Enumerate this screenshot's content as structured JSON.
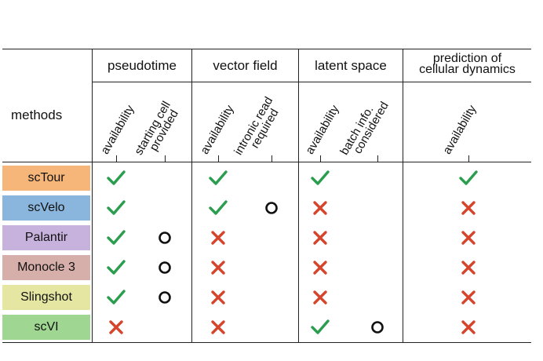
{
  "header": {
    "methods_label": "methods",
    "groups": [
      {
        "id": "pseudotime",
        "label": "pseudotime"
      },
      {
        "id": "vector_field",
        "label": "vector field"
      },
      {
        "id": "latent_space",
        "label": "latent space"
      },
      {
        "id": "prediction",
        "label_line1": "prediction of",
        "label_line2": "cellular dynamics"
      }
    ],
    "sub_columns": [
      {
        "group": "pseudotime",
        "lines": [
          "availability"
        ]
      },
      {
        "group": "pseudotime",
        "lines": [
          "starting cell",
          "provided"
        ]
      },
      {
        "group": "vector_field",
        "lines": [
          "availability"
        ]
      },
      {
        "group": "vector_field",
        "lines": [
          "intronic read",
          "required"
        ]
      },
      {
        "group": "latent_space",
        "lines": [
          "availability"
        ]
      },
      {
        "group": "latent_space",
        "lines": [
          "batch info.",
          "considered"
        ]
      },
      {
        "group": "prediction",
        "lines": [
          "availability"
        ]
      }
    ]
  },
  "colors": {
    "check": "#2a9d4e",
    "cross": "#d6442b",
    "circle": "#111111"
  },
  "legend_symbols": {
    "check": "check-icon",
    "cross": "cross-icon",
    "circle": "circle-icon"
  },
  "rows": [
    {
      "method": "scTour",
      "color": "#f6b679",
      "marks": [
        "check",
        "",
        "check",
        "",
        "check",
        "",
        "check"
      ]
    },
    {
      "method": "scVelo",
      "color": "#8ab6dd",
      "marks": [
        "check",
        "",
        "check",
        "circle",
        "cross",
        "",
        "cross"
      ]
    },
    {
      "method": "Palantir",
      "color": "#c7b2dd",
      "marks": [
        "check",
        "circle",
        "cross",
        "",
        "cross",
        "",
        "cross"
      ]
    },
    {
      "method": "Monocle 3",
      "color": "#d6aeaa",
      "marks": [
        "check",
        "circle",
        "cross",
        "",
        "cross",
        "",
        "cross"
      ]
    },
    {
      "method": "Slingshot",
      "color": "#e4e6a1",
      "marks": [
        "check",
        "circle",
        "cross",
        "",
        "cross",
        "",
        "cross"
      ]
    },
    {
      "method": "scVI",
      "color": "#9fd691",
      "marks": [
        "cross",
        "",
        "cross",
        "",
        "check",
        "circle",
        "cross"
      ]
    }
  ]
}
